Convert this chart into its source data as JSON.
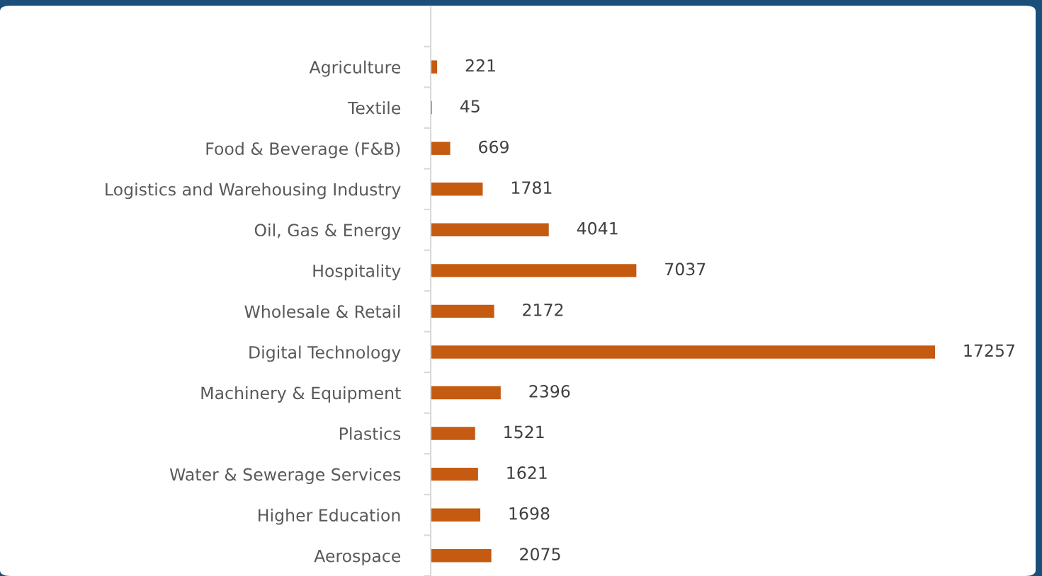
{
  "chart_data": {
    "type": "bar",
    "orientation": "horizontal",
    "categories": [
      "Agriculture",
      "Textile",
      "Food & Beverage (F&B)",
      "Logistics and Warehousing Industry",
      "Oil, Gas & Energy",
      "Hospitality",
      "Wholesale & Retail",
      "Digital Technology",
      "Machinery & Equipment",
      "Plastics",
      "Water & Sewerage Services",
      "Higher Education",
      "Aerospace"
    ],
    "values": [
      221,
      45,
      669,
      1781,
      4041,
      7037,
      2172,
      17257,
      2396,
      1521,
      1621,
      1698,
      2075
    ],
    "color": "#c55a11",
    "data_labels": true,
    "grid": false,
    "tick_labels": "y"
  }
}
